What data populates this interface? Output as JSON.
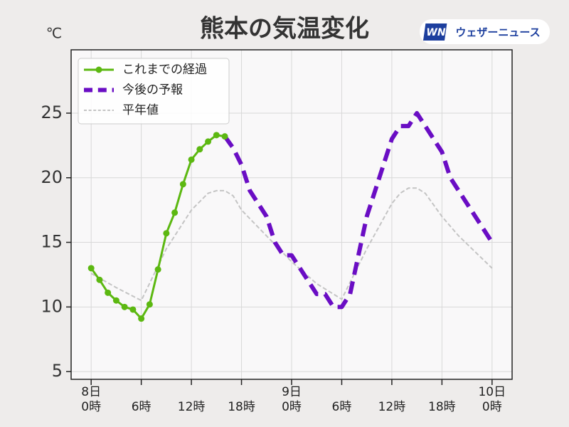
{
  "chart_data": {
    "type": "line",
    "title": "熊本の気温変化",
    "ylabel": "℃",
    "xlim": [
      -2.4,
      50.4
    ],
    "ylim": [
      4.4,
      29.9
    ],
    "xticks": [
      {
        "value": 0,
        "label": "8日\n0時"
      },
      {
        "value": 6,
        "label": "6時"
      },
      {
        "value": 12,
        "label": "12時"
      },
      {
        "value": 18,
        "label": "18時"
      },
      {
        "value": 24,
        "label": "9日\n0時"
      },
      {
        "value": 30,
        "label": "6時"
      },
      {
        "value": 36,
        "label": "12時"
      },
      {
        "value": 42,
        "label": "18時"
      },
      {
        "value": 48,
        "label": "10日\n0時"
      }
    ],
    "yticks": [
      5,
      10,
      15,
      20,
      25
    ],
    "grid": true,
    "legend": "upper left",
    "series": [
      {
        "name": "これまでの経過",
        "color": "#5cb811",
        "linestyle": "solid",
        "linewidth": 3,
        "markers": true,
        "x": [
          0,
          1,
          2,
          3,
          4,
          5,
          6,
          7,
          8,
          9,
          10,
          11,
          12,
          13,
          14,
          15,
          16
        ],
        "values": [
          13.0,
          12.1,
          11.1,
          10.5,
          10.0,
          9.8,
          9.1,
          10.2,
          12.9,
          15.7,
          17.3,
          19.5,
          21.4,
          22.2,
          22.8,
          23.3,
          23.2
        ]
      },
      {
        "name": "今後の予報",
        "color": "#6a0dc4",
        "linestyle": "dashed",
        "linewidth": 6,
        "markers": false,
        "x": [
          16,
          17,
          18,
          19,
          20,
          21,
          22,
          23,
          24,
          25,
          26,
          27,
          28,
          29,
          30,
          31,
          32,
          33,
          34,
          35,
          36,
          37,
          38,
          39,
          40,
          41,
          42,
          43,
          44,
          45,
          46,
          47,
          48
        ],
        "values": [
          23.2,
          22.3,
          21.0,
          19.0,
          18.0,
          17.0,
          15.0,
          14.0,
          14.0,
          13.0,
          12.0,
          11.0,
          11.0,
          10.0,
          10.0,
          11.0,
          14.0,
          17.0,
          19.0,
          21.0,
          23.0,
          24.0,
          24.0,
          25.0,
          24.0,
          23.0,
          22.0,
          20.0,
          19.0,
          18.0,
          17.0,
          16.0,
          15.0
        ]
      },
      {
        "name": "平年値",
        "color": "#c4c4c4",
        "linestyle": "dashed",
        "linewidth": 2,
        "markers": false,
        "x": [
          0,
          3,
          6,
          9,
          12,
          14,
          15,
          16,
          17,
          18,
          21,
          24,
          27,
          30,
          33,
          36,
          37,
          38,
          39,
          40,
          42,
          44,
          48
        ],
        "values": [
          12.6,
          11.5,
          10.5,
          14.5,
          17.5,
          18.8,
          19.0,
          19.0,
          18.6,
          17.5,
          15.5,
          13.5,
          11.8,
          10.6,
          14.5,
          18.0,
          18.8,
          19.2,
          19.2,
          18.8,
          17.0,
          15.5,
          13.0
        ]
      }
    ]
  },
  "logo": {
    "mark": "WN",
    "text": "ウェザーニュース"
  }
}
